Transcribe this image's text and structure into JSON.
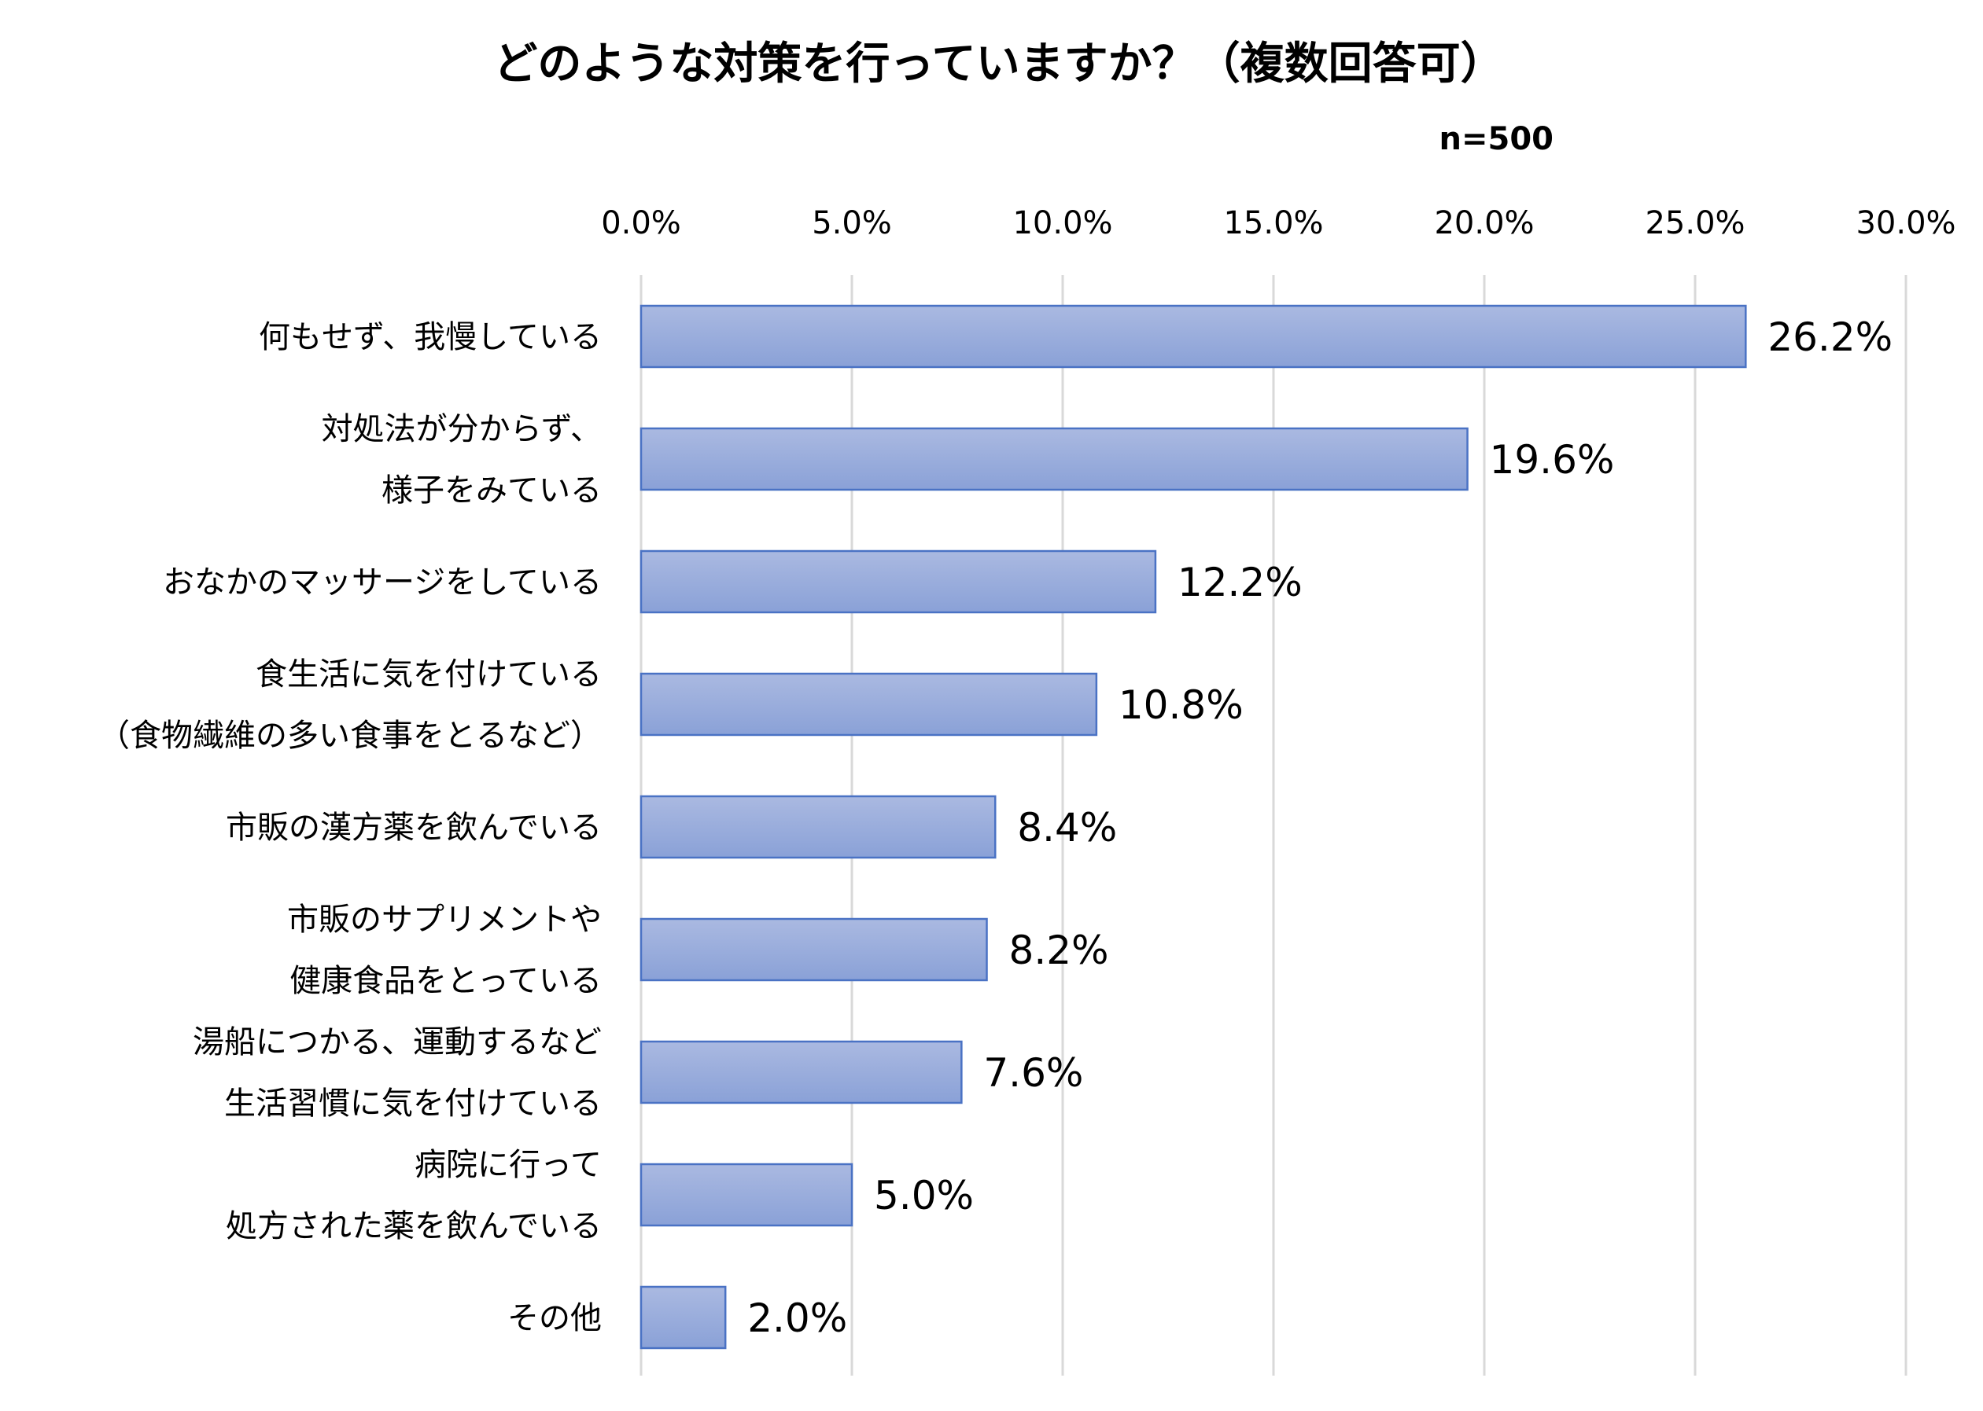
{
  "chart_data": {
    "type": "bar",
    "orientation": "horizontal",
    "title": "どのような対策を行っていますか？（複数回答可）",
    "note": "n=500",
    "categories": [
      [
        "何もせず、我慢している"
      ],
      [
        "対処法が分からず、",
        "様子をみている"
      ],
      [
        "おなかのマッサージをしている"
      ],
      [
        "食生活に気を付けている",
        "（食物繊維の多い食事をとるなど）"
      ],
      [
        "市販の漢方薬を飲んでいる"
      ],
      [
        "市販のサプリメントや",
        "健康食品をとっている"
      ],
      [
        "湯船につかる、運動するなど",
        "生活習慣に気を付けている"
      ],
      [
        "病院に行って",
        "処方された薬を飲んでいる"
      ],
      [
        "その他"
      ]
    ],
    "values": [
      26.2,
      19.6,
      12.2,
      10.8,
      8.4,
      8.2,
      7.6,
      5.0,
      2.0
    ],
    "value_labels": [
      "26.2%",
      "19.6%",
      "12.2%",
      "10.8%",
      "8.4%",
      "8.2%",
      "7.6%",
      "5.0%",
      "2.0%"
    ],
    "xlim": [
      0,
      30
    ],
    "xticks": [
      0,
      5,
      10,
      15,
      20,
      25,
      30
    ],
    "xtick_labels": [
      "0.0%",
      "5.0%",
      "10.0%",
      "15.0%",
      "20.0%",
      "25.0%",
      "30.0%"
    ],
    "x_axis_position": "top",
    "grid": true,
    "legend": "none",
    "colors": {
      "bar_top": "#aab9e1",
      "bar_bottom": "#8aa1d7",
      "bar_border": "#4a72c4",
      "grid": "#d9d9d9"
    }
  }
}
